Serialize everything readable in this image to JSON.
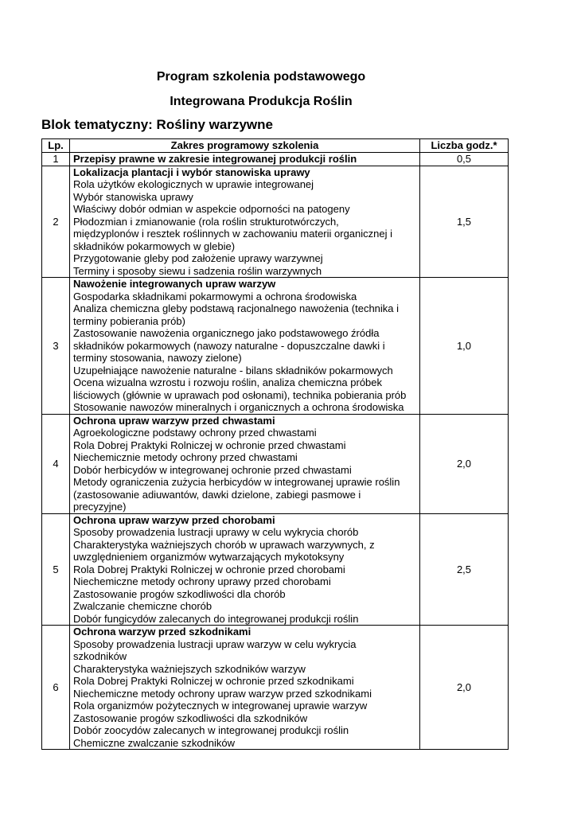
{
  "title_line1": "Program szkolenia podstawowego",
  "title_line2": "Integrowana Produkcja Roślin",
  "block_title": "Blok tematyczny: Rośliny warzywne",
  "table": {
    "headers": [
      "Lp.",
      "Zakres programowy szkolenia",
      "Liczba godz.*"
    ],
    "rows": [
      {
        "lp": "1",
        "heading": "Przepisy prawne w zakresie integrowanej produkcji roślin",
        "lines": [],
        "hours": "0,5"
      },
      {
        "lp": "2",
        "heading": "Lokalizacja plantacji i wybór stanowiska uprawy",
        "lines": [
          "Rola użytków ekologicznych w uprawie integrowanej",
          "Wybór stanowiska uprawy",
          "Właściwy dobór odmian w aspekcie odporności na patogeny",
          "Płodozmian i zmianowanie (rola roślin strukturotwórczych,",
          "międzyplonów i resztek roślinnych w zachowaniu materii organicznej i",
          "składników pokarmowych w glebie)",
          "Przygotowanie gleby pod założenie uprawy warzywnej",
          "Terminy i sposoby siewu i sadzenia roślin warzywnych"
        ],
        "hours": "1,5"
      },
      {
        "lp": "3",
        "heading": "Nawożenie integrowanych upraw warzyw",
        "lines": [
          "Gospodarka składnikami pokarmowymi a ochrona środowiska",
          "Analiza chemiczna gleby podstawą racjonalnego nawożenia (technika i",
          "terminy pobierania prób)",
          "Zastosowanie nawożenia organicznego jako podstawowego źródła",
          "składników pokarmowych (nawozy naturalne - dopuszczalne dawki i",
          "terminy stosowania, nawozy zielone)",
          "Uzupełniające nawożenie naturalne - bilans składników pokarmowych",
          "Ocena wizualna wzrostu i rozwoju roślin, analiza chemiczna próbek",
          "liściowych (głównie w uprawach pod osłonami), technika pobierania prób",
          "Stosowanie nawozów mineralnych i organicznych a ochrona środowiska"
        ],
        "hours": "1,0"
      },
      {
        "lp": "4",
        "heading": "Ochrona upraw warzyw przed chwastami",
        "lines": [
          "Agroekologiczne podstawy ochrony przed chwastami",
          "Rola Dobrej Praktyki Rolniczej w ochronie przed chwastami",
          "Niechemicznie metody ochrony przed chwastami",
          "Dobór herbicydów w integrowanej ochronie przed chwastami",
          "Metody ograniczenia zużycia herbicydów w integrowanej uprawie roślin",
          "(zastosowanie adiuwantów, dawki dzielone, zabiegi pasmowe i",
          "precyzyjne)"
        ],
        "hours": "2,0"
      },
      {
        "lp": "5",
        "heading": "Ochrona upraw warzyw przed chorobami",
        "lines": [
          "Sposoby prowadzenia lustracji uprawy w celu wykrycia chorób",
          "Charakterystyka ważniejszych chorób w uprawach warzywnych, z",
          "uwzględnieniem organizmów wytwarzających mykotoksyny",
          "Rola Dobrej Praktyki Rolniczej w ochronie przed chorobami",
          "Niechemiczne metody ochrony uprawy przed chorobami",
          "Zastosowanie progów szkodliwości dla chorób",
          "Zwalczanie chemiczne chorób",
          "Dobór fungicydów zalecanych do integrowanej produkcji roślin"
        ],
        "hours": "2,5"
      },
      {
        "lp": "6",
        "heading": "Ochrona warzyw przed szkodnikami",
        "lines": [
          "Sposoby prowadzenia lustracji upraw warzyw w celu wykrycia",
          "szkodników",
          "Charakterystyka ważniejszych szkodników warzyw",
          "Rola Dobrej Praktyki Rolniczej w ochronie przed szkodnikami",
          "Niechemiczne metody ochrony upraw warzyw przed szkodnikami",
          "Rola organizmów pożytecznych w integrowanej uprawie warzyw",
          "Zastosowanie progów szkodliwości dla szkodników",
          "Dobór zoocydów zalecanych w integrowanej produkcji roślin",
          "Chemiczne zwalczanie szkodników"
        ],
        "hours": "2,0"
      }
    ]
  }
}
